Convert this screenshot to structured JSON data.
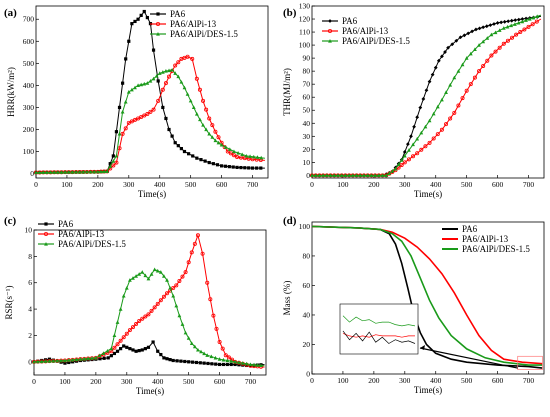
{
  "colors": {
    "PA6": "#000000",
    "PA6/AlPi-13": "#ff0000",
    "PA6/AlPi/DES-1.5": "#1a9a1a"
  },
  "chart_data": [
    {
      "panel": "(a)",
      "type": "line",
      "xlabel": "Time(s)",
      "ylabel": "HRR(kW/m²)",
      "xlim": [
        0,
        750
      ],
      "ylim": [
        -20,
        760
      ],
      "xticks": [
        0,
        100,
        200,
        300,
        400,
        500,
        600,
        700
      ],
      "yticks": [
        0,
        100,
        200,
        300,
        400,
        500,
        600,
        700
      ],
      "legend": "top-right",
      "series": [
        {
          "name": "PA6",
          "color": "#000000",
          "marker": "square",
          "points": [
            [
              0,
              5
            ],
            [
              200,
              8
            ],
            [
              230,
              10
            ],
            [
              250,
              80
            ],
            [
              270,
              300
            ],
            [
              290,
              520
            ],
            [
              310,
              680
            ],
            [
              330,
              700
            ],
            [
              350,
              735
            ],
            [
              370,
              680
            ],
            [
              380,
              560
            ],
            [
              395,
              420
            ],
            [
              410,
              300
            ],
            [
              430,
              200
            ],
            [
              450,
              140
            ],
            [
              480,
              100
            ],
            [
              520,
              70
            ],
            [
              560,
              50
            ],
            [
              600,
              35
            ],
            [
              650,
              28
            ],
            [
              700,
              25
            ],
            [
              740,
              25
            ]
          ]
        },
        {
          "name": "PA6/AlPi-13",
          "color": "#ff0000",
          "marker": "circle",
          "points": [
            [
              0,
              5
            ],
            [
              200,
              8
            ],
            [
              230,
              10
            ],
            [
              260,
              50
            ],
            [
              280,
              180
            ],
            [
              300,
              230
            ],
            [
              330,
              250
            ],
            [
              360,
              270
            ],
            [
              380,
              290
            ],
            [
              395,
              330
            ],
            [
              410,
              380
            ],
            [
              430,
              440
            ],
            [
              450,
              490
            ],
            [
              470,
              520
            ],
            [
              490,
              530
            ],
            [
              505,
              520
            ],
            [
              520,
              430
            ],
            [
              540,
              330
            ],
            [
              560,
              250
            ],
            [
              580,
              190
            ],
            [
              600,
              140
            ],
            [
              620,
              100
            ],
            [
              650,
              75
            ],
            [
              700,
              65
            ],
            [
              740,
              60
            ]
          ]
        },
        {
          "name": "PA6/AlPi/DES-1.5",
          "color": "#1a9a1a",
          "marker": "triangle",
          "points": [
            [
              0,
              5
            ],
            [
              200,
              8
            ],
            [
              230,
              10
            ],
            [
              260,
              80
            ],
            [
              280,
              280
            ],
            [
              300,
              370
            ],
            [
              330,
              400
            ],
            [
              360,
              410
            ],
            [
              380,
              430
            ],
            [
              400,
              455
            ],
            [
              420,
              465
            ],
            [
              440,
              470
            ],
            [
              460,
              440
            ],
            [
              480,
              390
            ],
            [
              500,
              330
            ],
            [
              520,
              270
            ],
            [
              540,
              220
            ],
            [
              560,
              180
            ],
            [
              580,
              150
            ],
            [
              600,
              130
            ],
            [
              640,
              100
            ],
            [
              680,
              80
            ],
            [
              740,
              70
            ]
          ]
        }
      ]
    },
    {
      "panel": "(b)",
      "type": "line",
      "xlabel": "Time(s)",
      "ylabel": "THR(MJ/m²)",
      "xlim": [
        0,
        750
      ],
      "ylim": [
        -2,
        130
      ],
      "xticks": [
        0,
        100,
        200,
        300,
        400,
        500,
        600,
        700
      ],
      "yticks": [
        0,
        10,
        20,
        30,
        40,
        50,
        60,
        70,
        80,
        90,
        100,
        110,
        120,
        130
      ],
      "legend": "top-left",
      "series": [
        {
          "name": "PA6",
          "color": "#000000",
          "marker": "diamond",
          "points": [
            [
              0,
              0
            ],
            [
              230,
              0
            ],
            [
              260,
              3
            ],
            [
              290,
              12
            ],
            [
              320,
              30
            ],
            [
              350,
              52
            ],
            [
              380,
              72
            ],
            [
              410,
              88
            ],
            [
              440,
              98
            ],
            [
              480,
              106
            ],
            [
              530,
              112
            ],
            [
              600,
              117
            ],
            [
              680,
              120
            ],
            [
              740,
              122
            ]
          ]
        },
        {
          "name": "PA6/AlPi-13",
          "color": "#ff0000",
          "marker": "circle",
          "points": [
            [
              0,
              0
            ],
            [
              240,
              0
            ],
            [
              270,
              4
            ],
            [
              300,
              10
            ],
            [
              340,
              17
            ],
            [
              380,
              25
            ],
            [
              420,
              35
            ],
            [
              460,
              48
            ],
            [
              500,
              65
            ],
            [
              540,
              80
            ],
            [
              580,
              92
            ],
            [
              620,
              101
            ],
            [
              660,
              108
            ],
            [
              700,
              114
            ],
            [
              740,
              120
            ]
          ]
        },
        {
          "name": "PA6/AlPi/DES-1.5",
          "color": "#1a9a1a",
          "marker": "triangle",
          "points": [
            [
              0,
              0
            ],
            [
              240,
              0
            ],
            [
              270,
              5
            ],
            [
              300,
              15
            ],
            [
              340,
              28
            ],
            [
              380,
              42
            ],
            [
              420,
              58
            ],
            [
              460,
              75
            ],
            [
              500,
              90
            ],
            [
              540,
              100
            ],
            [
              580,
              108
            ],
            [
              620,
              113
            ],
            [
              680,
              118
            ],
            [
              740,
              123
            ]
          ]
        }
      ]
    },
    {
      "panel": "(c)",
      "type": "line",
      "xlabel": "Time(s)",
      "ylabel": "RSR(s⁻¹)",
      "xlim": [
        0,
        750
      ],
      "ylim": [
        -1,
        10
      ],
      "xticks": [
        0,
        100,
        200,
        300,
        400,
        500,
        600,
        700
      ],
      "yticks": [
        0,
        2,
        4,
        6,
        8,
        10
      ],
      "legend": "top-left",
      "series": [
        {
          "name": "PA6",
          "color": "#000000",
          "marker": "square",
          "points": [
            [
              0,
              0
            ],
            [
              50,
              0.2
            ],
            [
              100,
              -0.1
            ],
            [
              150,
              0.1
            ],
            [
              200,
              0.2
            ],
            [
              240,
              0.3
            ],
            [
              270,
              0.8
            ],
            [
              290,
              1.2
            ],
            [
              310,
              1.0
            ],
            [
              330,
              0.8
            ],
            [
              350,
              0.9
            ],
            [
              370,
              1.1
            ],
            [
              385,
              1.5
            ],
            [
              400,
              0.8
            ],
            [
              420,
              0.3
            ],
            [
              450,
              0.1
            ],
            [
              500,
              0
            ],
            [
              550,
              -0.1
            ],
            [
              600,
              -0.2
            ],
            [
              650,
              -0.2
            ],
            [
              700,
              -0.3
            ],
            [
              745,
              -0.2
            ]
          ]
        },
        {
          "name": "PA6/AlPi-13",
          "color": "#ff0000",
          "marker": "circle",
          "points": [
            [
              0,
              0
            ],
            [
              100,
              0.1
            ],
            [
              200,
              0.3
            ],
            [
              250,
              0.8
            ],
            [
              280,
              1.6
            ],
            [
              310,
              2.4
            ],
            [
              340,
              3.1
            ],
            [
              370,
              3.6
            ],
            [
              400,
              4.4
            ],
            [
              430,
              5.2
            ],
            [
              460,
              5.8
            ],
            [
              490,
              6.8
            ],
            [
              510,
              8.3
            ],
            [
              530,
              9.6
            ],
            [
              545,
              8.2
            ],
            [
              560,
              6.0
            ],
            [
              580,
              3.5
            ],
            [
              600,
              1.5
            ],
            [
              620,
              0.5
            ],
            [
              650,
              0
            ],
            [
              700,
              -0.3
            ],
            [
              745,
              -0.4
            ]
          ]
        },
        {
          "name": "PA6/AlPi/DES-1.5",
          "color": "#1a9a1a",
          "marker": "triangle",
          "points": [
            [
              0,
              0
            ],
            [
              100,
              0.1
            ],
            [
              200,
              0.3
            ],
            [
              250,
              1.0
            ],
            [
              270,
              3.0
            ],
            [
              290,
              5.0
            ],
            [
              310,
              6.2
            ],
            [
              330,
              6.5
            ],
            [
              350,
              6.8
            ],
            [
              370,
              6.3
            ],
            [
              390,
              7.0
            ],
            [
              410,
              6.8
            ],
            [
              430,
              6.2
            ],
            [
              450,
              5.0
            ],
            [
              470,
              3.5
            ],
            [
              490,
              2.2
            ],
            [
              510,
              1.4
            ],
            [
              530,
              0.9
            ],
            [
              560,
              0.5
            ],
            [
              600,
              0.2
            ],
            [
              650,
              0
            ],
            [
              700,
              -0.2
            ],
            [
              745,
              -0.3
            ]
          ]
        }
      ]
    },
    {
      "panel": "(d)",
      "type": "line",
      "xlabel": "Time(s)",
      "ylabel": "Mass (%)",
      "xlim": [
        0,
        750
      ],
      "ylim": [
        0,
        103
      ],
      "xticks": [
        0,
        100,
        200,
        300,
        400,
        500,
        600,
        700
      ],
      "yticks": [
        0,
        20,
        40,
        60,
        80,
        100
      ],
      "legend": "top-right",
      "series": [
        {
          "name": "PA6",
          "color": "#000000",
          "points": [
            [
              0,
              100
            ],
            [
              150,
              99
            ],
            [
              220,
              98
            ],
            [
              250,
              95
            ],
            [
              270,
              88
            ],
            [
              290,
              75
            ],
            [
              310,
              58
            ],
            [
              330,
              40
            ],
            [
              350,
              28
            ],
            [
              370,
              20
            ],
            [
              400,
              14
            ],
            [
              450,
              10
            ],
            [
              500,
              8
            ],
            [
              600,
              6
            ],
            [
              700,
              5
            ],
            [
              745,
              4
            ]
          ]
        },
        {
          "name": "PA6/AlPi-13",
          "color": "#ff0000",
          "points": [
            [
              0,
              100
            ],
            [
              150,
              99
            ],
            [
              220,
              98
            ],
            [
              260,
              96
            ],
            [
              300,
              92
            ],
            [
              340,
              86
            ],
            [
              380,
              78
            ],
            [
              420,
              68
            ],
            [
              460,
              55
            ],
            [
              500,
              40
            ],
            [
              540,
              26
            ],
            [
              580,
              16
            ],
            [
              620,
              10
            ],
            [
              680,
              8
            ],
            [
              745,
              7
            ]
          ]
        },
        {
          "name": "PA6/AlPi/DES-1.5",
          "color": "#1a9a1a",
          "points": [
            [
              0,
              100
            ],
            [
              150,
              99
            ],
            [
              220,
              98
            ],
            [
              260,
              95
            ],
            [
              290,
              90
            ],
            [
              320,
              80
            ],
            [
              350,
              65
            ],
            [
              380,
              50
            ],
            [
              410,
              38
            ],
            [
              450,
              26
            ],
            [
              500,
              17
            ],
            [
              560,
              11
            ],
            [
              620,
              8
            ],
            [
              700,
              6
            ],
            [
              745,
              6
            ]
          ]
        }
      ]
    }
  ]
}
